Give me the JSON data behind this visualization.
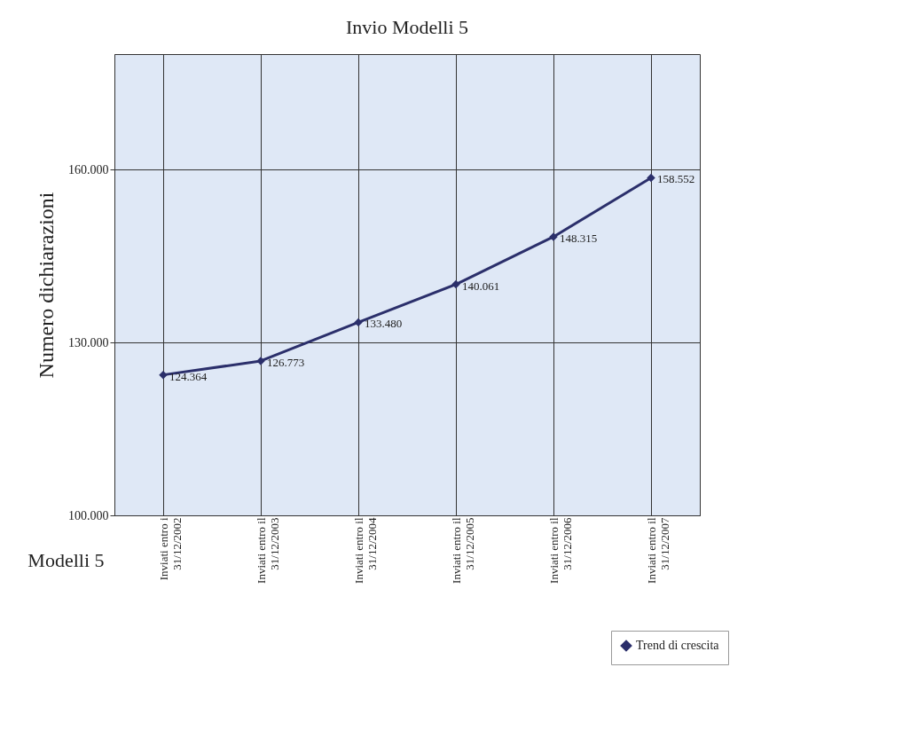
{
  "chart_data": {
    "type": "line",
    "title": "Invio Modelli 5",
    "ylabel": "Numero dichiarazioni",
    "xlabel": "Modelli 5",
    "categories": [
      "Inviati entro i\n31/12/2002",
      "Inviati entro il\n31/12/2003",
      "Inviati entro il\n31/12/2004",
      "Inviati entro il\n31/12/2005",
      "Inviati entro il\n31/12/2006",
      "Inviati entro il\n31/12/2007"
    ],
    "series": [
      {
        "name": "Trend di crescita",
        "color": "#2b2f6b",
        "values": [
          124364,
          126773,
          133480,
          140061,
          148315,
          158552
        ],
        "value_labels": [
          "124.364",
          "126.773",
          "133.480",
          "140.061",
          "148.315",
          "158.552"
        ]
      }
    ],
    "ylim": [
      100000,
      180000
    ],
    "yticks": [
      {
        "value": 100000,
        "label": "100.000"
      },
      {
        "value": 130000,
        "label": "130.000"
      },
      {
        "value": 160000,
        "label": "160.000"
      }
    ],
    "grid": true,
    "legend": "bottom right",
    "marker": "diamond",
    "line_style": "solid"
  }
}
